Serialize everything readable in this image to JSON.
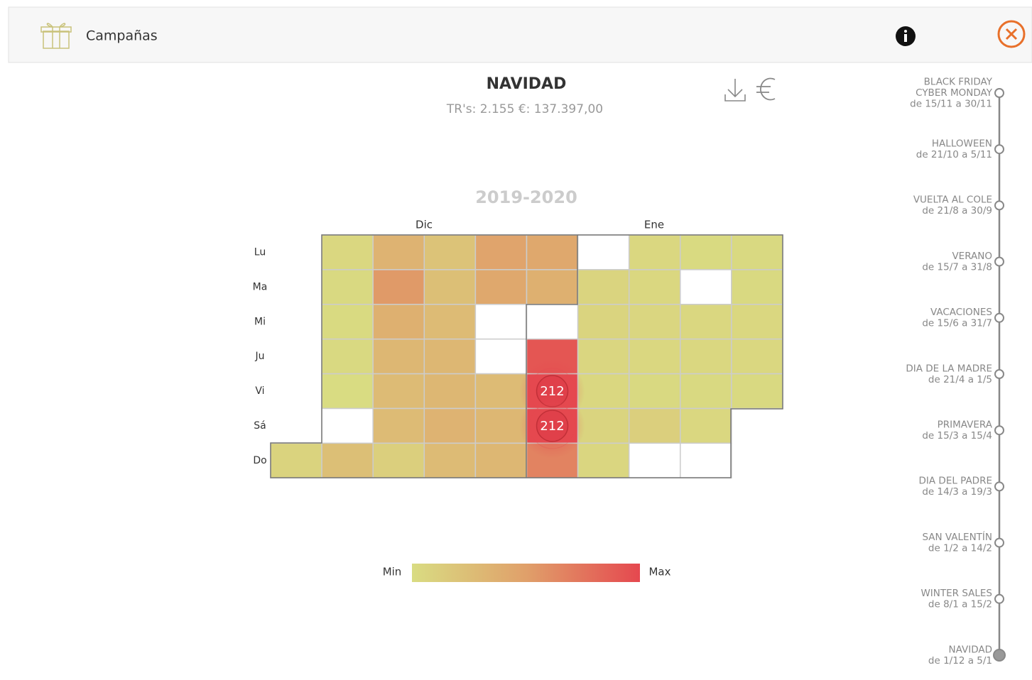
{
  "header": {
    "title": "Campañas"
  },
  "campaign": {
    "title": "NAVIDAD",
    "summary": "TR's: 2.155 €: 137.397,00"
  },
  "heatmap": {
    "season": "2019-2020",
    "months": [
      "Dic",
      "Ene"
    ],
    "weekdays": [
      "Lu",
      "Ma",
      "Mi",
      "Ju",
      "Vi",
      "Sá",
      "Do"
    ],
    "rows": [
      [
        null,
        65,
        110,
        90,
        130,
        125,
        0,
        65,
        60,
        62
      ],
      [
        null,
        62,
        140,
        95,
        125,
        115,
        68,
        65,
        0,
        62
      ],
      [
        null,
        60,
        115,
        100,
        0,
        0,
        68,
        66,
        64,
        64
      ],
      [
        null,
        62,
        105,
        105,
        0,
        200,
        66,
        64,
        64,
        65
      ],
      [
        null,
        58,
        100,
        105,
        100,
        212,
        64,
        62,
        62,
        62
      ],
      [
        null,
        0,
        100,
        110,
        105,
        212,
        68,
        75,
        64,
        null
      ],
      [
        70,
        95,
        75,
        100,
        105,
        160,
        66,
        0,
        0,
        null
      ]
    ],
    "highlighted": [
      [
        4,
        5
      ],
      [
        5,
        5
      ]
    ],
    "legend": {
      "min": "Min",
      "max": "Max",
      "min_color": "#d9dc82",
      "mid_color": "#e0a06a",
      "max_color": "#e5484f"
    }
  },
  "timeline": {
    "selected_index": 10,
    "items": [
      {
        "lines": [
          "BLACK FRIDAY",
          "CYBER MONDAY",
          "de 15/11 a 30/11"
        ]
      },
      {
        "lines": [
          "HALLOWEEN",
          "de 21/10 a 5/11"
        ]
      },
      {
        "lines": [
          "VUELTA AL COLE",
          "de 21/8 a 30/9"
        ]
      },
      {
        "lines": [
          "VERANO",
          "de 15/7 a 31/8"
        ]
      },
      {
        "lines": [
          "VACACIONES",
          "de 15/6 a 31/7"
        ]
      },
      {
        "lines": [
          "DIA DE LA MADRE",
          "de 21/4 a 1/5"
        ]
      },
      {
        "lines": [
          "PRIMAVERA",
          "de 15/3 a 15/4"
        ]
      },
      {
        "lines": [
          "DIA DEL PADRE",
          "de 14/3 a 19/3"
        ]
      },
      {
        "lines": [
          "SAN VALENTÍN",
          "de 1/2 a 14/2"
        ]
      },
      {
        "lines": [
          "WINTER SALES",
          "de 8/1 a 15/2"
        ]
      },
      {
        "lines": [
          "NAVIDAD",
          "de 1/12 a 5/1"
        ]
      }
    ]
  }
}
